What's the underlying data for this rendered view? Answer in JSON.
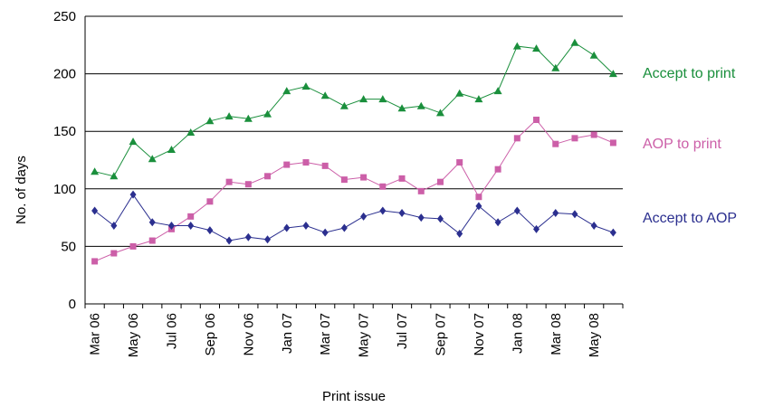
{
  "chart_data": {
    "type": "line",
    "xlabel": "Print issue",
    "ylabel": "No. of days",
    "ylim": [
      0,
      250
    ],
    "yticks": [
      0,
      50,
      100,
      150,
      200,
      250
    ],
    "grid": "horizontal",
    "legend": "right",
    "categories": [
      "Mar 06",
      "Apr 06",
      "May 06",
      "Jun 06",
      "Jul 06",
      "Aug 06",
      "Sep 06",
      "Oct 06",
      "Nov 06",
      "Dec 06",
      "Jan 07",
      "Feb 07",
      "Mar 07",
      "Apr 07",
      "May 07",
      "Jun 07",
      "Jul 07",
      "Aug 07",
      "Sep 07",
      "Oct 07",
      "Nov 07",
      "Dec 07",
      "Jan 08",
      "Feb 08",
      "Mar 08",
      "Apr 08",
      "May 08",
      "Jun 08"
    ],
    "tick_labels": [
      "Mar 06",
      "May 06",
      "Jul 06",
      "Sep 06",
      "Nov 06",
      "Jan 07",
      "Mar 07",
      "May 07",
      "Jul 07",
      "Sep 07",
      "Nov 07",
      "Jan 08",
      "Mar 08",
      "May 08"
    ],
    "series": [
      {
        "name": "Accept to print",
        "color": "#1a8f3c",
        "marker": "triangle",
        "values": [
          115,
          111,
          141,
          126,
          134,
          149,
          159,
          163,
          161,
          165,
          185,
          189,
          181,
          172,
          178,
          178,
          170,
          172,
          166,
          183,
          178,
          185,
          224,
          222,
          205,
          227,
          216,
          200
        ]
      },
      {
        "name": "AOP to print",
        "color": "#cc5fa8",
        "marker": "square",
        "values": [
          37,
          44,
          50,
          55,
          65,
          76,
          89,
          106,
          104,
          111,
          121,
          123,
          120,
          108,
          110,
          102,
          109,
          98,
          106,
          123,
          93,
          117,
          144,
          160,
          139,
          144,
          147,
          140
        ]
      },
      {
        "name": "Accept to AOP",
        "color": "#2b2f8f",
        "marker": "diamond",
        "values": [
          81,
          68,
          95,
          71,
          68,
          68,
          64,
          55,
          58,
          56,
          66,
          68,
          62,
          66,
          76,
          81,
          79,
          75,
          74,
          61,
          85,
          71,
          81,
          65,
          79,
          78,
          68,
          62
        ]
      }
    ]
  }
}
